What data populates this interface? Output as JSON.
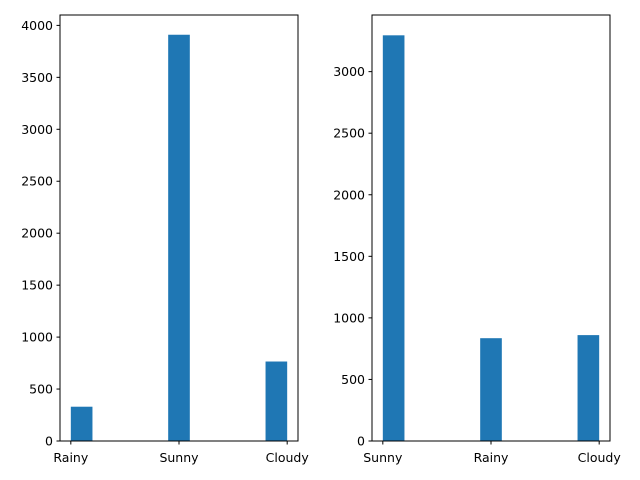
{
  "chart_data": [
    {
      "type": "bar",
      "categories": [
        "Rainy",
        "Sunny",
        "Cloudy"
      ],
      "values": [
        330,
        3910,
        765
      ],
      "ylim": [
        0,
        4100
      ],
      "yticks": [
        0,
        500,
        1000,
        1500,
        2000,
        2500,
        3000,
        3500,
        4000
      ],
      "xlim": [
        -0.1,
        2.1
      ],
      "bar_width": 0.2,
      "grid": false,
      "color": "#1f77b4"
    },
    {
      "type": "bar",
      "categories": [
        "Sunny",
        "Rainy",
        "Cloudy"
      ],
      "values": [
        3295,
        835,
        860
      ],
      "ylim": [
        0,
        3460
      ],
      "yticks": [
        0,
        500,
        1000,
        1500,
        2000,
        2500,
        3000
      ],
      "xlim": [
        -0.1,
        2.1
      ],
      "bar_width": 0.2,
      "grid": false,
      "color": "#1f77b4"
    }
  ]
}
